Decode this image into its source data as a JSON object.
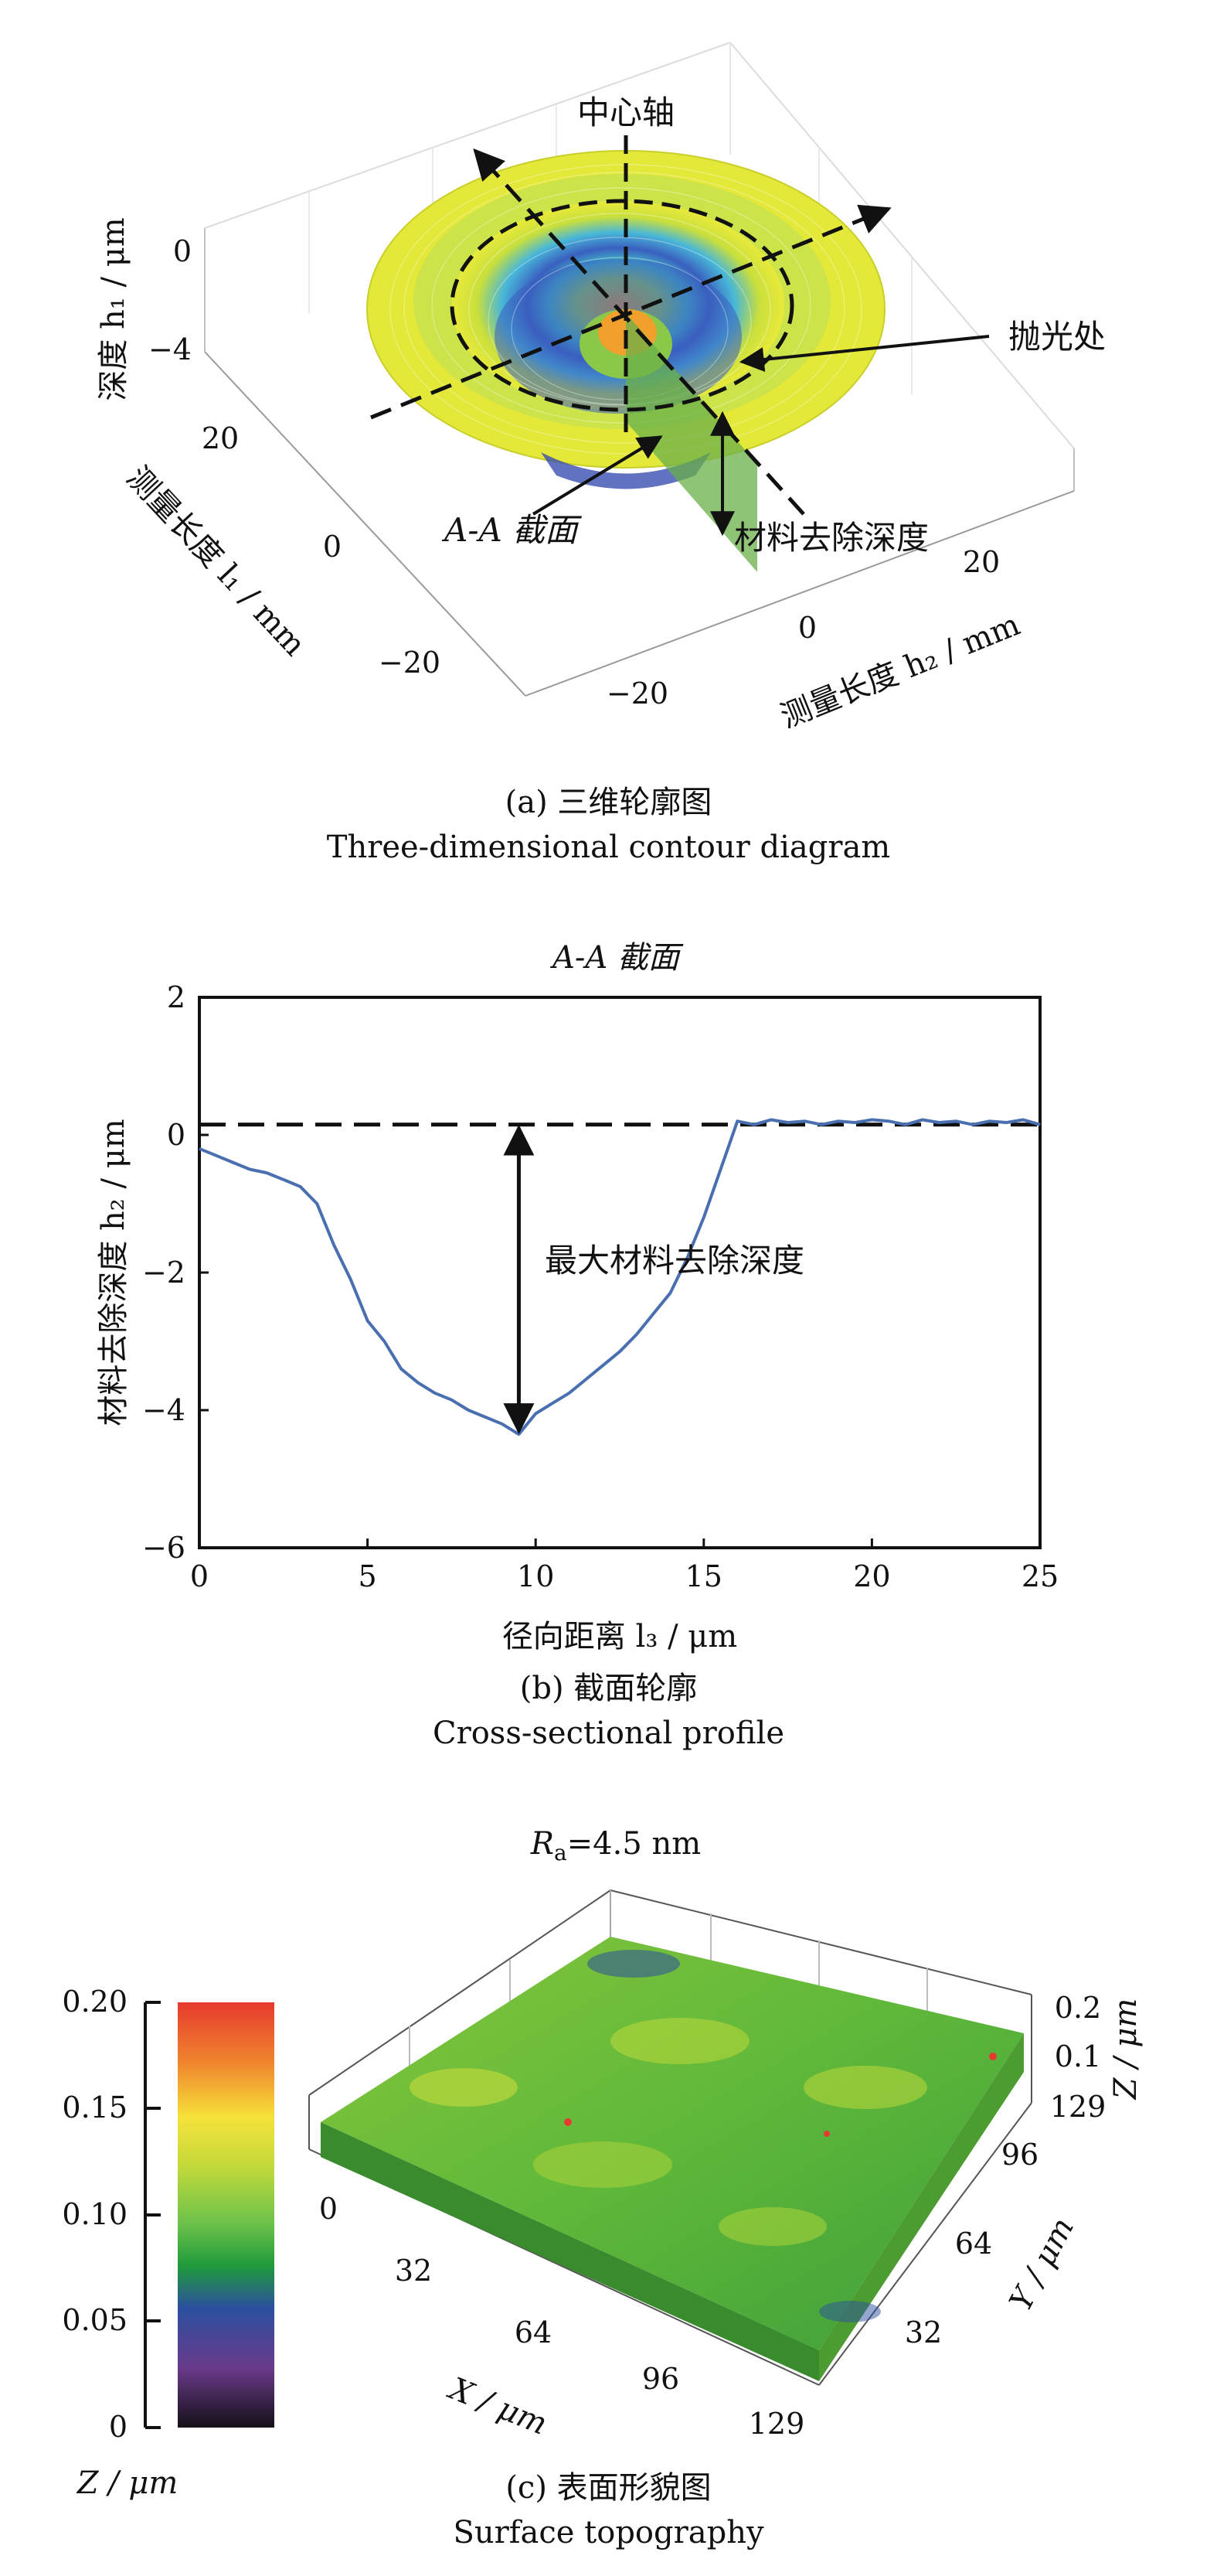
{
  "panel_a": {
    "label_axis": "中心轴",
    "label_polish": "抛光处",
    "label_section": "A-A 截面",
    "label_depth": "材料去除深度",
    "zlabel": "深度 h₁ / μm",
    "xlabel": "测量长度 l₁ / mm",
    "ylabel": "测量长度 h₂ / mm",
    "zticks": [
      "0",
      "−4"
    ],
    "xticks": [
      "20",
      "0",
      "−20"
    ],
    "yticks": [
      "−20",
      "0",
      "20"
    ],
    "caption_cn": "(a) 三维轮廓图",
    "caption_en": "Three-dimensional contour diagram"
  },
  "panel_b": {
    "annotation": "最大材料去除深度",
    "caption_cn": "(b) 截面轮廓",
    "caption_en": "Cross-sectional profile"
  },
  "panel_c": {
    "title": "Ra=4.5 nm",
    "title_prefix": "R",
    "title_sub": "a",
    "title_rest": "=4.5 nm",
    "colorbar_label": "Z / μm",
    "colorbar_ticks": [
      "0.20",
      "0.15",
      "0.10",
      "0.05",
      "0"
    ],
    "xlabel": "X / μm",
    "ylabel": "Y / μm",
    "zlabel": "Z / μm",
    "xticks": [
      "0",
      "32",
      "64",
      "96",
      "129"
    ],
    "yticks": [
      "32",
      "64",
      "96",
      "129"
    ],
    "zticks": [
      "0.1",
      "0.2"
    ],
    "colors": [
      "#e63a2e",
      "#f08a2d",
      "#f6e23a",
      "#c6da3a",
      "#6cc24a",
      "#1f9a3a",
      "#2b4fa0",
      "#6a3a8a",
      "#141018"
    ],
    "caption_cn": "(c) 表面形貌图",
    "caption_en": "Surface topography"
  },
  "chart_data": [
    {
      "type": "line",
      "title": "A-A 截面",
      "xlabel": "径向距离 l₃ / μm",
      "ylabel": "材料去除深度 h₂ / μm",
      "xlim": [
        0,
        25
      ],
      "ylim": [
        -6,
        2
      ],
      "xticks": [
        0,
        5,
        10,
        15,
        20,
        25
      ],
      "yticks": [
        -6,
        -4,
        -2,
        0,
        2
      ],
      "reference_line_y": 0.15,
      "series": [
        {
          "color": "#4a6fb0",
          "x": [
            0,
            0.5,
            1,
            1.5,
            2,
            2.5,
            3,
            3.5,
            4,
            4.5,
            5,
            5.5,
            6,
            6.5,
            7,
            7.5,
            8,
            8.5,
            9,
            9.5,
            10,
            10.5,
            11,
            11.5,
            12,
            12.5,
            13,
            13.5,
            14,
            14.5,
            15,
            15.5,
            16,
            16.5,
            17,
            17.5,
            18,
            18.5,
            19,
            19.5,
            20,
            20.5,
            21,
            21.5,
            22,
            22.5,
            23,
            23.5,
            24,
            24.5,
            25
          ],
          "y": [
            -0.2,
            -0.3,
            -0.4,
            -0.5,
            -0.55,
            -0.65,
            -0.75,
            -1.0,
            -1.6,
            -2.1,
            -2.7,
            -3.0,
            -3.4,
            -3.6,
            -3.75,
            -3.85,
            -4.0,
            -4.1,
            -4.2,
            -4.35,
            -4.05,
            -3.9,
            -3.75,
            -3.55,
            -3.35,
            -3.15,
            -2.9,
            -2.6,
            -2.3,
            -1.8,
            -1.2,
            -0.5,
            0.2,
            0.15,
            0.22,
            0.18,
            0.2,
            0.15,
            0.2,
            0.18,
            0.22,
            0.2,
            0.15,
            0.22,
            0.18,
            0.2,
            0.15,
            0.2,
            0.18,
            0.22,
            0.15
          ]
        }
      ]
    }
  ]
}
